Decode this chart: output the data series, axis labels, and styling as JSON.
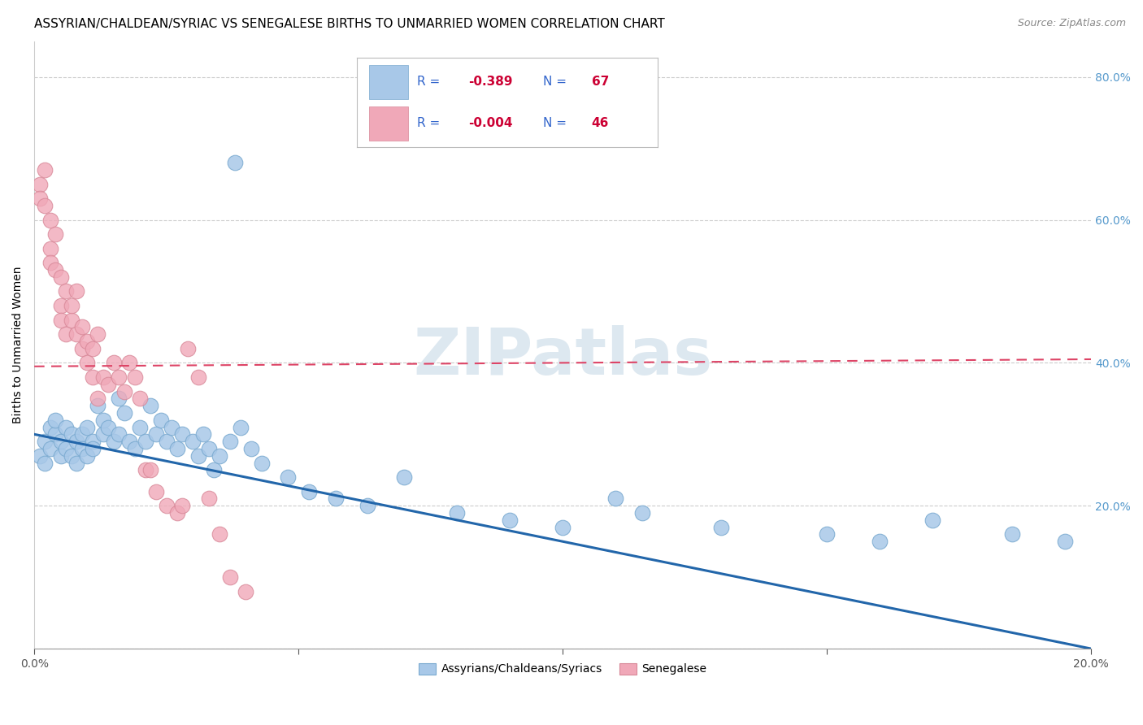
{
  "title": "ASSYRIAN/CHALDEAN/SYRIAC VS SENEGALESE BIRTHS TO UNMARRIED WOMEN CORRELATION CHART",
  "source": "Source: ZipAtlas.com",
  "ylabel": "Births to Unmarried Women",
  "xlim": [
    0.0,
    0.2
  ],
  "ylim": [
    0.0,
    0.85
  ],
  "x_ticks": [
    0.0,
    0.05,
    0.1,
    0.15,
    0.2
  ],
  "y_ticks": [
    0.0,
    0.2,
    0.4,
    0.6,
    0.8
  ],
  "scatter_blue_color": "#a8c8e8",
  "scatter_blue_edge": "#7aaad0",
  "scatter_pink_color": "#f0a8b8",
  "scatter_pink_edge": "#d88898",
  "trendline_blue_color": "#2266aa",
  "trendline_pink_color": "#dd4466",
  "blue_trend_x": [
    0.0,
    0.2
  ],
  "blue_trend_y": [
    0.3,
    0.0
  ],
  "pink_trend_x": [
    0.0,
    0.2
  ],
  "pink_trend_y": [
    0.395,
    0.405
  ],
  "blue_r": "-0.389",
  "blue_n": "67",
  "pink_r": "-0.004",
  "pink_n": "46",
  "r_label_color": "#3366cc",
  "r_value_color": "#cc0033",
  "background_color": "#ffffff",
  "grid_color": "#cccccc",
  "right_tick_color": "#5599cc",
  "watermark_text": "ZIPatlas",
  "watermark_color": "#dde8f0",
  "title_fontsize": 11,
  "blue_points_x": [
    0.001,
    0.002,
    0.002,
    0.003,
    0.003,
    0.004,
    0.004,
    0.005,
    0.005,
    0.006,
    0.006,
    0.007,
    0.007,
    0.008,
    0.008,
    0.009,
    0.009,
    0.01,
    0.01,
    0.011,
    0.011,
    0.012,
    0.013,
    0.013,
    0.014,
    0.015,
    0.016,
    0.016,
    0.017,
    0.018,
    0.019,
    0.02,
    0.021,
    0.022,
    0.023,
    0.024,
    0.025,
    0.026,
    0.027,
    0.028,
    0.03,
    0.031,
    0.032,
    0.033,
    0.034,
    0.035,
    0.037,
    0.039,
    0.041,
    0.043,
    0.048,
    0.052,
    0.057,
    0.063,
    0.07,
    0.08,
    0.09,
    0.1,
    0.11,
    0.115,
    0.13,
    0.15,
    0.16,
    0.17,
    0.185,
    0.195,
    0.038
  ],
  "blue_points_y": [
    0.27,
    0.29,
    0.26,
    0.31,
    0.28,
    0.3,
    0.32,
    0.29,
    0.27,
    0.31,
    0.28,
    0.3,
    0.27,
    0.26,
    0.29,
    0.3,
    0.28,
    0.27,
    0.31,
    0.29,
    0.28,
    0.34,
    0.3,
    0.32,
    0.31,
    0.29,
    0.35,
    0.3,
    0.33,
    0.29,
    0.28,
    0.31,
    0.29,
    0.34,
    0.3,
    0.32,
    0.29,
    0.31,
    0.28,
    0.3,
    0.29,
    0.27,
    0.3,
    0.28,
    0.25,
    0.27,
    0.29,
    0.31,
    0.28,
    0.26,
    0.24,
    0.22,
    0.21,
    0.2,
    0.24,
    0.19,
    0.18,
    0.17,
    0.21,
    0.19,
    0.17,
    0.16,
    0.15,
    0.18,
    0.16,
    0.15,
    0.68
  ],
  "pink_points_x": [
    0.001,
    0.001,
    0.002,
    0.002,
    0.003,
    0.003,
    0.003,
    0.004,
    0.004,
    0.005,
    0.005,
    0.005,
    0.006,
    0.006,
    0.007,
    0.007,
    0.008,
    0.008,
    0.009,
    0.009,
    0.01,
    0.01,
    0.011,
    0.011,
    0.012,
    0.012,
    0.013,
    0.014,
    0.015,
    0.016,
    0.017,
    0.018,
    0.019,
    0.02,
    0.021,
    0.022,
    0.023,
    0.025,
    0.027,
    0.028,
    0.029,
    0.031,
    0.033,
    0.035,
    0.037,
    0.04
  ],
  "pink_points_y": [
    0.65,
    0.63,
    0.62,
    0.67,
    0.56,
    0.54,
    0.6,
    0.53,
    0.58,
    0.48,
    0.52,
    0.46,
    0.5,
    0.44,
    0.46,
    0.48,
    0.44,
    0.5,
    0.42,
    0.45,
    0.43,
    0.4,
    0.38,
    0.42,
    0.44,
    0.35,
    0.38,
    0.37,
    0.4,
    0.38,
    0.36,
    0.4,
    0.38,
    0.35,
    0.25,
    0.25,
    0.22,
    0.2,
    0.19,
    0.2,
    0.42,
    0.38,
    0.21,
    0.16,
    0.1,
    0.08
  ]
}
